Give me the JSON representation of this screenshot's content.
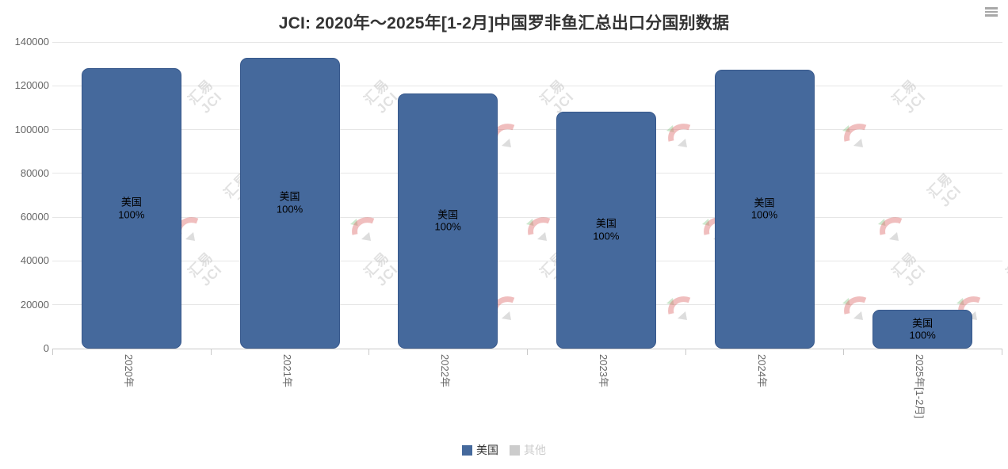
{
  "header": {
    "title": "JCI: 2020年～2025年[1-2月]中国罗非鱼汇总出口分国别数据"
  },
  "watermark": {
    "line1": "汇易",
    "line2": "JCI"
  },
  "colors": {
    "bar_fill": "#45699C",
    "bar_border": "#38598C",
    "grid": "#E6E6E6",
    "axis": "#C9C9C9",
    "axis_label": "#666666",
    "title": "#333333",
    "bar_label": "#000000",
    "legend_disabled": "#CCCCCC",
    "menu_icon": "#A8A8A8"
  },
  "chart_data": {
    "type": "bar",
    "title": "JCI: 2020年～2025年[1-2月]中国罗非鱼汇总出口分国别数据",
    "categories": [
      "2020年",
      "2021年",
      "2022年",
      "2023年",
      "2024年",
      "2025年[1-2月]"
    ],
    "series": [
      {
        "name": "美国",
        "visible": true,
        "color": "#45699C",
        "values": [
          128000,
          132800,
          116500,
          108200,
          127500,
          17700
        ],
        "percents": [
          "100%",
          "100%",
          "100%",
          "100%",
          "100%",
          "100%"
        ]
      },
      {
        "name": "其他",
        "visible": false,
        "color": "#CCCCCC",
        "values": []
      }
    ],
    "xlabel": "",
    "ylabel": "",
    "yaxis": {
      "min": 0,
      "max": 140000,
      "tick_interval": 20000,
      "tick_labels": [
        "0",
        "20000",
        "40000",
        "60000",
        "80000",
        "100000",
        "120000",
        "140000"
      ]
    },
    "grid": true,
    "legend_position": "bottom",
    "legend": [
      {
        "label": "美国",
        "color": "#45699C",
        "enabled": true
      },
      {
        "label": "其他",
        "color": "#CCCCCC",
        "enabled": false
      }
    ]
  }
}
